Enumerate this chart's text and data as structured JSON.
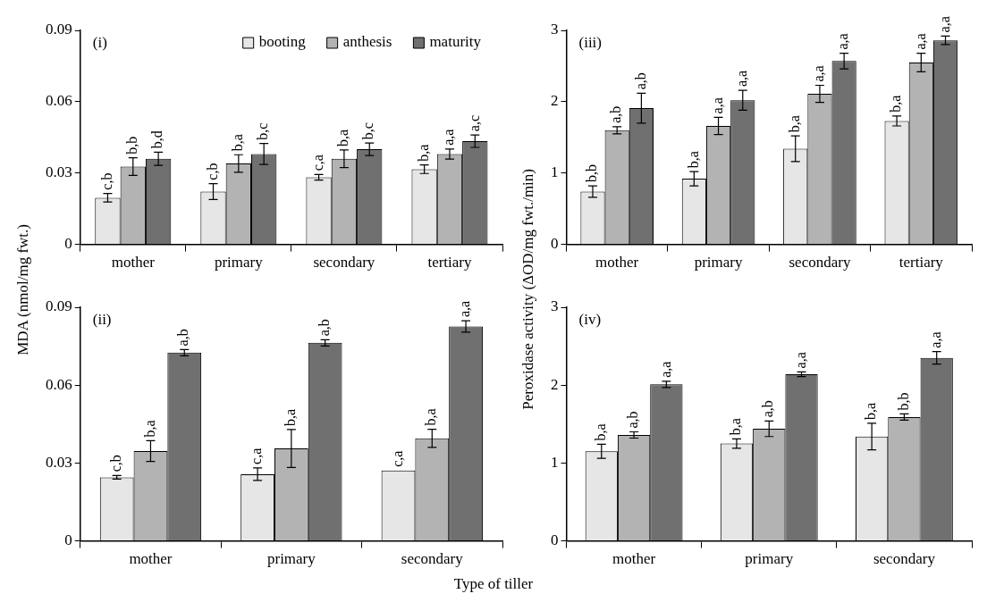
{
  "chart_data": [
    {
      "type": "bar",
      "ylabel": "MDA (nmol/mg fwt.)",
      "annotations": [
        "(i)"
      ],
      "legend": "top right",
      "categories": [
        "mother",
        "primary",
        "secondary",
        "tertiary"
      ],
      "ylim": [
        0,
        0.09
      ],
      "yticks": [
        0,
        0.03,
        0.06,
        0.09
      ],
      "series": [
        {
          "name": "booting",
          "color": "#e6e6e6",
          "values": [
            0.0196,
            0.0222,
            0.0282,
            0.0316
          ],
          "errors": [
            0.0018,
            0.0033,
            0.0012,
            0.0018
          ],
          "value_labels": [
            "c,b",
            "c,b",
            "c,a",
            "b,a"
          ]
        },
        {
          "name": "anthesis",
          "color": "#b3b3b3",
          "values": [
            0.0327,
            0.034,
            0.036,
            0.038
          ],
          "errors": [
            0.0037,
            0.0037,
            0.0037,
            0.0021
          ],
          "value_labels": [
            "b,b",
            "b,a",
            "b,a",
            "a,a"
          ]
        },
        {
          "name": "maturity",
          "color": "#707070",
          "values": [
            0.036,
            0.038,
            0.04,
            0.0434
          ],
          "errors": [
            0.0028,
            0.0044,
            0.0026,
            0.0026
          ],
          "value_labels": [
            "b,d",
            "b,c",
            "b,c",
            "a,c"
          ]
        }
      ]
    },
    {
      "type": "bar",
      "ylabel": "Peroxidase activity (ΔOD/mg fwt./min)",
      "annotations": [
        "(iii)"
      ],
      "categories": [
        "mother",
        "primary",
        "secondary",
        "tertiary"
      ],
      "ylim": [
        0,
        3
      ],
      "yticks": [
        0,
        1,
        2,
        3
      ],
      "series": [
        {
          "color": "#e6e6e6",
          "values": [
            0.74,
            0.92,
            1.34,
            1.73
          ],
          "errors": [
            0.08,
            0.1,
            0.18,
            0.07
          ],
          "value_labels": [
            "b,b",
            "b,a",
            "b,a",
            "b,a"
          ]
        },
        {
          "color": "#b3b3b3",
          "values": [
            1.6,
            1.66,
            2.11,
            2.55
          ],
          "errors": [
            0.05,
            0.12,
            0.12,
            0.13
          ],
          "value_labels": [
            "a,b",
            "a,a",
            "a,a",
            "a,a"
          ]
        },
        {
          "color": "#707070",
          "values": [
            1.91,
            2.02,
            2.57,
            2.86
          ],
          "errors": [
            0.21,
            0.14,
            0.11,
            0.06
          ],
          "value_labels": [
            "a,b",
            "a,a",
            "a,a",
            "a,a"
          ]
        }
      ]
    },
    {
      "type": "bar",
      "xlabel": "Type of tiller",
      "annotations": [
        "(ii)"
      ],
      "categories": [
        "mother",
        "primary",
        "secondary"
      ],
      "ylim": [
        0,
        0.09
      ],
      "yticks": [
        0,
        0.03,
        0.06,
        0.09
      ],
      "series": [
        {
          "color": "#e6e6e6",
          "values": [
            0.0245,
            0.0257,
            0.0271
          ],
          "errors": [
            0.0007,
            0.0024,
            null
          ],
          "value_labels": [
            "c,b",
            "c,a",
            "c,a"
          ]
        },
        {
          "color": "#b3b3b3",
          "values": [
            0.0346,
            0.0356,
            0.0395
          ],
          "errors": [
            0.004,
            0.0073,
            0.0035
          ],
          "value_labels": [
            "b,a",
            "b,a",
            "b,a"
          ]
        },
        {
          "color": "#707070",
          "values": [
            0.0725,
            0.0763,
            0.0826
          ],
          "errors": [
            0.0012,
            0.0012,
            0.0022
          ],
          "value_labels": [
            "a,b",
            "a,b",
            "a,a"
          ]
        }
      ]
    },
    {
      "type": "bar",
      "annotations": [
        "(iv)"
      ],
      "categories": [
        "mother",
        "primary",
        "secondary"
      ],
      "ylim": [
        0,
        3
      ],
      "yticks": [
        0,
        1,
        2,
        3
      ],
      "series": [
        {
          "color": "#e6e6e6",
          "values": [
            1.15,
            1.25,
            1.34
          ],
          "errors": [
            0.09,
            0.06,
            0.17
          ],
          "value_labels": [
            "b,a",
            "b,a",
            "b,a"
          ]
        },
        {
          "color": "#b3b3b3",
          "values": [
            1.36,
            1.44,
            1.59
          ],
          "errors": [
            0.04,
            0.1,
            0.04
          ],
          "value_labels": [
            "a,b",
            "a,b",
            "b,b"
          ]
        },
        {
          "color": "#707070",
          "values": [
            2.01,
            2.14,
            2.35
          ],
          "errors": [
            0.04,
            0.03,
            0.08
          ],
          "value_labels": [
            "a,a",
            "a,a",
            "a,a"
          ]
        }
      ]
    }
  ]
}
